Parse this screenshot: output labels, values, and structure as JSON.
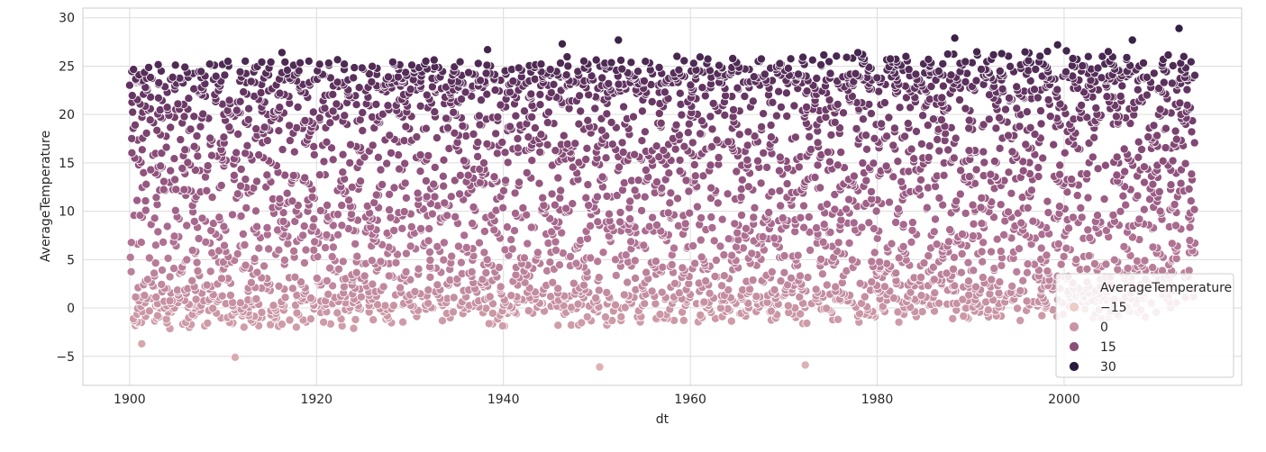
{
  "chart_data": {
    "type": "scatter",
    "title": "",
    "xlabel": "dt",
    "ylabel": "AverageTemperature",
    "xlim": [
      1895,
      2019
    ],
    "ylim": [
      -8,
      31
    ],
    "x_ticks": [
      1900,
      1920,
      1940,
      1960,
      1980,
      2000
    ],
    "y_ticks": [
      -5,
      0,
      5,
      10,
      15,
      20,
      25,
      30
    ],
    "x_tick_labels": [
      "1900",
      "1920",
      "1940",
      "1960",
      "1980",
      "2000"
    ],
    "y_tick_labels": [
      "−5",
      "0",
      "5",
      "10",
      "15",
      "20",
      "25",
      "30"
    ],
    "grid": true,
    "hue": "AverageTemperature",
    "series": [
      {
        "x_range": [
          1900,
          2013
        ],
        "y_range": [
          -6.2,
          28.9
        ],
        "points_per_year": 36,
        "points": [
          {
            "x": 1901,
            "y": -3.7
          },
          {
            "x": 1911,
            "y": -5.1
          },
          {
            "x": 1950,
            "y": -6.1
          },
          {
            "x": 1972,
            "y": -5.9
          },
          {
            "x": 1988,
            "y": 27.9
          },
          {
            "x": 2012,
            "y": 28.9
          },
          {
            "x": 1952,
            "y": 27.7
          },
          {
            "x": 1946,
            "y": 27.3
          },
          {
            "x": 1938,
            "y": 26.7
          },
          {
            "x": 1916,
            "y": 26.4
          },
          {
            "x": 2007,
            "y": 27.7
          },
          {
            "x": 1999,
            "y": 27.2
          }
        ]
      }
    ],
    "legend": {
      "title": "AverageTemperature",
      "placement": "lower-right",
      "entries": [
        {
          "label": "−15",
          "value": -15,
          "color": "#ebcec8"
        },
        {
          "label": "0",
          "value": 0,
          "color": "#c994a4"
        },
        {
          "label": "15",
          "value": 15,
          "color": "#8c4f7a"
        },
        {
          "label": "30",
          "value": 30,
          "color": "#2a1b3d"
        }
      ]
    },
    "colormap": {
      "name": "cubehelix-light",
      "domain": [
        -15,
        30
      ],
      "stops": [
        "#f0d9d3",
        "#e2b8b7",
        "#c994a4",
        "#ad6e91",
        "#8c4f7a",
        "#633461",
        "#2a1b3d"
      ]
    },
    "colors": {
      "background": "#ffffff",
      "grid": "#dcdcdc",
      "axes_edge": "#cccccc",
      "marker_edge": "#ffffff"
    }
  }
}
